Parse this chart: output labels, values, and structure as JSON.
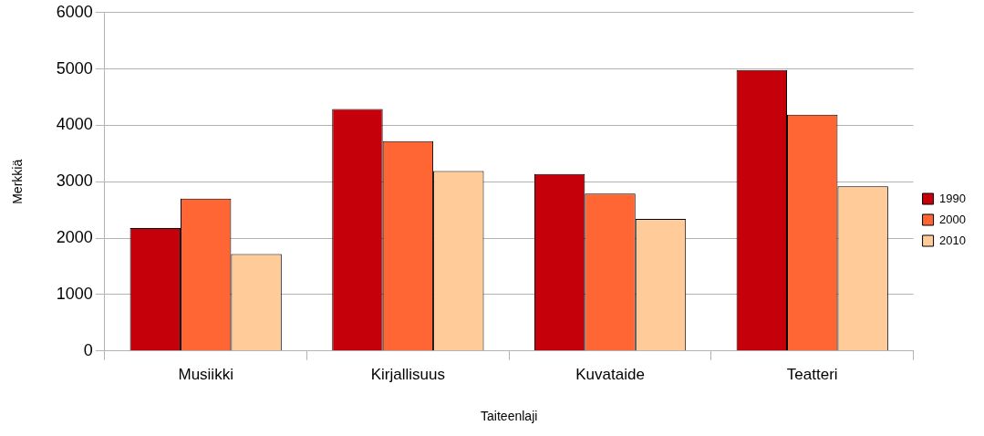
{
  "chart_data": {
    "type": "bar",
    "xlabel": "Taiteenlaji",
    "ylabel": "Merkkiä",
    "categories": [
      "Musiikki",
      "Kirjallisuus",
      "Kuvataide",
      "Teatteri"
    ],
    "series": [
      {
        "name": "1990",
        "color": "#c5000b",
        "values": [
          2180,
          4290,
          3140,
          4980
        ]
      },
      {
        "name": "2000",
        "color": "#ff6633",
        "values": [
          2700,
          3720,
          2790,
          4190
        ]
      },
      {
        "name": "2010",
        "color": "#ffcc99",
        "values": [
          1720,
          3190,
          2340,
          2920
        ]
      }
    ],
    "ylim": [
      0,
      6000
    ],
    "yticks": [
      0,
      1000,
      2000,
      3000,
      4000,
      5000,
      6000
    ],
    "grid": "y",
    "legend": "right"
  }
}
